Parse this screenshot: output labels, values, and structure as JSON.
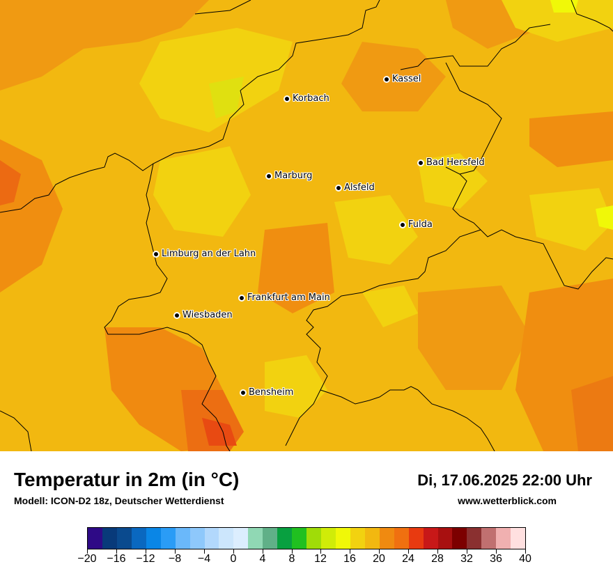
{
  "title": "Temperatur in 2m (in °C)",
  "subtitle": "Modell: ICON-D2 18z, Deutscher Wetterdienst",
  "datetime": "Di, 17.06.2025 22:00 Uhr",
  "website": "www.wetterblick.com",
  "cities": [
    {
      "name": "Kassel"
    },
    {
      "name": "Korbach"
    },
    {
      "name": "Bad Hersfeld"
    },
    {
      "name": "Marburg"
    },
    {
      "name": "Alsfeld"
    },
    {
      "name": "Fulda"
    },
    {
      "name": "Limburg an der Lahn"
    },
    {
      "name": "Frankfurt am Main"
    },
    {
      "name": "Wiesbaden"
    },
    {
      "name": "Bensheim"
    }
  ],
  "legend": {
    "colors": [
      "#2e0a86",
      "#083a7a",
      "#0a4a8e",
      "#0a68c0",
      "#0a86e6",
      "#2a9cf6",
      "#6ab8fa",
      "#8ec8fb",
      "#b2d8fc",
      "#cce6fc",
      "#dceefe",
      "#90d8b4",
      "#60b088",
      "#08a040",
      "#20c020",
      "#a0dc08",
      "#d0ec08",
      "#f0f808",
      "#f2d210",
      "#f2b810",
      "#f08a10",
      "#f07010",
      "#e83a10",
      "#c81818",
      "#a81010",
      "#7c0000",
      "#8a3030",
      "#c07070",
      "#f0b0b0",
      "#ffe0e0"
    ],
    "tick_labels": [
      "−20",
      "−16",
      "−12",
      "−8",
      "−4",
      "0",
      "4",
      "8",
      "12",
      "16",
      "20",
      "24",
      "28",
      "32",
      "36",
      "40"
    ],
    "min": -20,
    "max": 40,
    "unit": "°C"
  }
}
